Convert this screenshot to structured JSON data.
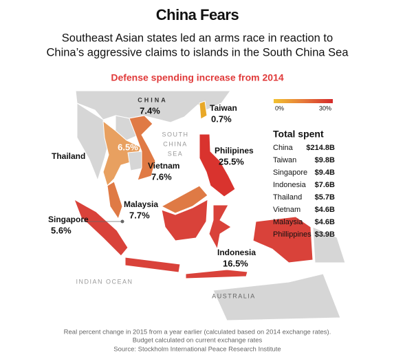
{
  "header": {
    "title": "China Fears",
    "subtitle": [
      "Southeast Asian states led an arms race in reaction to",
      "China’s aggressive claims to islands in the South China Sea"
    ],
    "map_title": "Defense spending increase from 2014"
  },
  "legend": {
    "min_label": "0%",
    "max_label": "30%"
  },
  "regions": [
    {
      "name": "CHINA",
      "label": "7.4%"
    },
    {
      "name": "Taiwan",
      "label": "0.7%"
    },
    {
      "name": "Thailand",
      "label": "6.5%"
    },
    {
      "name": "Vietnam",
      "label": "7.6%"
    },
    {
      "name": "Philipines",
      "label": "25.5%"
    },
    {
      "name": "Malaysia",
      "label": "7.7%"
    },
    {
      "name": "Singapore",
      "label": "5.6%"
    },
    {
      "name": "Indonesia",
      "label": "16.5%"
    }
  ],
  "places": {
    "sea": [
      "SOUTH",
      "CHINA",
      "SEA"
    ],
    "ocean": "INDIAN OCEAN",
    "continent": "AUSTRALIA"
  },
  "table": {
    "title": "Total spent",
    "rows": [
      [
        "China",
        "$214.8B"
      ],
      [
        "Taiwan",
        "$9.8B"
      ],
      [
        "Singapore",
        "$9.4B"
      ],
      [
        "Indonesia",
        "$7.6B"
      ],
      [
        "Thailand",
        "$5.7B"
      ],
      [
        "Vietnam",
        "$4.6B"
      ],
      [
        "Malaysia",
        "$4.6B"
      ],
      [
        "Phillippines",
        "$3.9B"
      ]
    ]
  },
  "footer": {
    "notes": [
      "Real percent change in 2015 from a year earlier (calculated based on 2014 exchange rates).",
      "Budget calculated on current exchange rates"
    ],
    "source": "Source: Stockholm International Peace Research Institute"
  }
}
